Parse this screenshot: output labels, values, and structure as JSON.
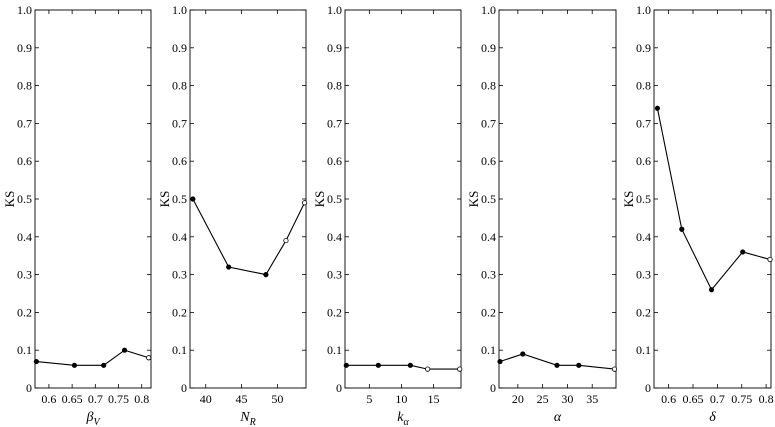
{
  "chart_data": [
    {
      "type": "line",
      "xlabel": {
        "base": "β",
        "sub": "V"
      },
      "ylabel": "KS",
      "xlim": [
        0.57,
        0.82
      ],
      "ylim": [
        0,
        1
      ],
      "xticks": [
        0.6,
        0.65,
        0.7,
        0.75,
        0.8
      ],
      "xticklabels": [
        "0.6",
        "0.65",
        "0.7",
        "0.75",
        "0.8"
      ],
      "yticks": [
        0,
        0.1,
        0.2,
        0.3,
        0.4,
        0.5,
        0.6,
        0.7,
        0.8,
        0.9,
        1.0
      ],
      "yticklabels": [
        "0",
        "0.1",
        "0.2",
        "0.3",
        "0.4",
        "0.5",
        "0.6",
        "0.7",
        "0.8",
        "0.9",
        "1.0"
      ],
      "x": [
        0.573,
        0.655,
        0.718,
        0.763,
        0.815
      ],
      "y": [
        0.07,
        0.06,
        0.06,
        0.1,
        0.08
      ],
      "marker_fill": [
        "filled",
        "filled",
        "filled",
        "filled",
        "open"
      ]
    },
    {
      "type": "line",
      "xlabel": {
        "base": "N",
        "sub": "R"
      },
      "ylabel": "KS",
      "xlim": [
        37.8,
        54
      ],
      "ylim": [
        0,
        1
      ],
      "xticks": [
        40,
        45,
        50
      ],
      "xticklabels": [
        "40",
        "45",
        "50"
      ],
      "yticks": [
        0,
        0.1,
        0.2,
        0.3,
        0.4,
        0.5,
        0.6,
        0.7,
        0.8,
        0.9,
        1.0
      ],
      "yticklabels": [
        "0",
        "0.1",
        "0.2",
        "0.3",
        "0.4",
        "0.5",
        "0.6",
        "0.7",
        "0.8",
        "0.9",
        "1.0"
      ],
      "x": [
        38.2,
        43.2,
        48.4,
        51.2,
        53.8
      ],
      "y": [
        0.5,
        0.32,
        0.3,
        0.39,
        0.49
      ],
      "marker_fill": [
        "filled",
        "filled",
        "filled",
        "open",
        "open"
      ]
    },
    {
      "type": "line",
      "xlabel": {
        "base": "k",
        "sub": "α"
      },
      "ylabel": "KS",
      "xlim": [
        1.2,
        19.3
      ],
      "ylim": [
        0,
        1
      ],
      "xticks": [
        5,
        10,
        15
      ],
      "xticklabels": [
        "5",
        "10",
        "15"
      ],
      "yticks": [
        0,
        0.1,
        0.2,
        0.3,
        0.4,
        0.5,
        0.6,
        0.7,
        0.8,
        0.9,
        1.0
      ],
      "yticklabels": [
        "0",
        "0.1",
        "0.2",
        "0.3",
        "0.4",
        "0.5",
        "0.6",
        "0.7",
        "0.8",
        "0.9",
        "1.0"
      ],
      "x": [
        1.4,
        6.4,
        11.4,
        14.1,
        19.1
      ],
      "y": [
        0.06,
        0.06,
        0.06,
        0.05,
        0.05
      ],
      "marker_fill": [
        "filled",
        "filled",
        "filled",
        "open",
        "open"
      ]
    },
    {
      "type": "line",
      "xlabel": {
        "base": "α",
        "sub": ""
      },
      "ylabel": "KS",
      "xlim": [
        16.2,
        39.8
      ],
      "ylim": [
        0,
        1
      ],
      "xticks": [
        20,
        25,
        30,
        35
      ],
      "xticklabels": [
        "20",
        "25",
        "30",
        "35"
      ],
      "yticks": [
        0,
        0.1,
        0.2,
        0.3,
        0.4,
        0.5,
        0.6,
        0.7,
        0.8,
        0.9,
        1.0
      ],
      "yticklabels": [
        "0",
        "0.1",
        "0.2",
        "0.3",
        "0.4",
        "0.5",
        "0.6",
        "0.7",
        "0.8",
        "0.9",
        "1.0"
      ],
      "x": [
        16.4,
        21.0,
        27.9,
        32.3,
        39.5
      ],
      "y": [
        0.07,
        0.09,
        0.06,
        0.06,
        0.05
      ],
      "marker_fill": [
        "filled",
        "filled",
        "filled",
        "filled",
        "open"
      ]
    },
    {
      "type": "line",
      "xlabel": {
        "base": "δ",
        "sub": ""
      },
      "ylabel": "KS",
      "xlim": [
        0.57,
        0.81
      ],
      "ylim": [
        0,
        1
      ],
      "xticks": [
        0.6,
        0.65,
        0.7,
        0.75,
        0.8
      ],
      "xticklabels": [
        "0.6",
        "0.65",
        "0.7",
        "0.75",
        "0.8"
      ],
      "yticks": [
        0,
        0.1,
        0.2,
        0.3,
        0.4,
        0.5,
        0.6,
        0.7,
        0.8,
        0.9,
        1.0
      ],
      "yticklabels": [
        "0",
        "0.1",
        "0.2",
        "0.3",
        "0.4",
        "0.5",
        "0.6",
        "0.7",
        "0.8",
        "0.9",
        "1.0"
      ],
      "x": [
        0.577,
        0.627,
        0.688,
        0.752,
        0.808
      ],
      "y": [
        0.74,
        0.42,
        0.26,
        0.36,
        0.34
      ],
      "marker_fill": [
        "filled",
        "filled",
        "filled",
        "filled",
        "open"
      ]
    }
  ]
}
